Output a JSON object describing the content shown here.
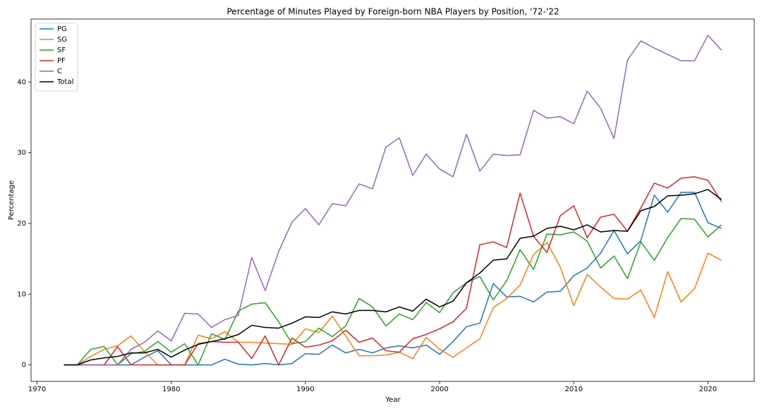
{
  "chart_data": {
    "type": "line",
    "title": "Percentage of Minutes Played by Foreign-born NBA Players by Position, '72-'22",
    "x_label": "Year",
    "y_label": "Percentage",
    "x": [
      1972,
      1973,
      1974,
      1975,
      1976,
      1977,
      1978,
      1979,
      1980,
      1981,
      1982,
      1983,
      1984,
      1985,
      1986,
      1987,
      1988,
      1989,
      1990,
      1991,
      1992,
      1993,
      1994,
      1995,
      1996,
      1997,
      1998,
      1999,
      2000,
      2001,
      2002,
      2003,
      2004,
      2005,
      2006,
      2007,
      2008,
      2009,
      2010,
      2011,
      2012,
      2013,
      2014,
      2015,
      2016,
      2017,
      2018,
      2019,
      2020,
      2021
    ],
    "series": [
      {
        "name": "PG",
        "color": "#1f77b4",
        "values": [
          0,
          0,
          0,
          0,
          0,
          0,
          1.1,
          2.0,
          0,
          0,
          0,
          0,
          0.8,
          0.1,
          0,
          0.2,
          0,
          0.2,
          1.6,
          1.5,
          2.8,
          1.7,
          2.2,
          1.7,
          2.4,
          2.7,
          2.4,
          2.8,
          1.5,
          3.3,
          5.4,
          5.9,
          11.5,
          9.6,
          9.7,
          8.9,
          10.3,
          10.4,
          12.6,
          13.7,
          15.8,
          19.0,
          15.7,
          17.6,
          24.0,
          21.6,
          24.4,
          24.4,
          20.1,
          19.3
        ]
      },
      {
        "name": "SG",
        "color": "#ff7f0e",
        "values": [
          0,
          0,
          1.2,
          2.2,
          2.7,
          4.1,
          1.9,
          0,
          0,
          0,
          4.2,
          3.7,
          4.7,
          3.2,
          3.2,
          3.1,
          3.0,
          2.9,
          5.1,
          4.6,
          6.9,
          4.1,
          1.3,
          1.3,
          1.4,
          1.8,
          0.9,
          3.9,
          2.2,
          1.1,
          2.4,
          3.7,
          8.1,
          9.4,
          11.3,
          15.6,
          17.3,
          13.8,
          8.4,
          12.8,
          11.0,
          9.4,
          9.3,
          10.6,
          6.7,
          13.2,
          8.9,
          10.8,
          15.8,
          14.8
        ]
      },
      {
        "name": "SF",
        "color": "#2ca02c",
        "values": [
          0,
          0,
          2.2,
          2.6,
          0,
          1.6,
          1.9,
          3.3,
          1.8,
          3.0,
          0,
          4.4,
          3.6,
          7.6,
          8.6,
          8.8,
          6.1,
          3.0,
          3.3,
          5.2,
          4.0,
          5.5,
          9.4,
          8.2,
          5.5,
          7.2,
          6.4,
          8.8,
          7.4,
          10.2,
          11.6,
          12.5,
          9.2,
          11.9,
          16.3,
          13.5,
          18.5,
          18.4,
          18.8,
          17.5,
          13.7,
          15.4,
          12.2,
          17.4,
          14.8,
          18.0,
          20.7,
          20.6,
          18.1,
          19.8
        ]
      },
      {
        "name": "PF",
        "color": "#d62728",
        "values": [
          0,
          0,
          0,
          0,
          2.6,
          0,
          0,
          0,
          0,
          0,
          3.0,
          3.3,
          3.2,
          3.2,
          0.9,
          4.1,
          0,
          3.8,
          2.5,
          2.8,
          3.4,
          4.9,
          3.2,
          3.8,
          2.0,
          1.8,
          3.7,
          4.3,
          5.1,
          6.1,
          8.0,
          17.0,
          17.4,
          16.6,
          24.3,
          18.2,
          15.9,
          21.1,
          22.5,
          18.0,
          20.9,
          21.3,
          18.9,
          22.2,
          25.7,
          25.0,
          26.4,
          26.6,
          26.1,
          23.1
        ]
      },
      {
        "name": "C",
        "color": "#9467bd",
        "values": [
          0,
          0,
          0,
          0,
          0,
          2.2,
          3.2,
          4.8,
          3.4,
          7.3,
          7.2,
          5.3,
          6.4,
          7.0,
          15.2,
          10.5,
          16.0,
          20.2,
          22.1,
          19.8,
          22.8,
          22.5,
          25.6,
          24.9,
          30.8,
          32.1,
          26.8,
          29.8,
          27.7,
          26.6,
          32.6,
          27.4,
          29.8,
          29.6,
          29.7,
          36.0,
          34.9,
          35.1,
          34.1,
          38.7,
          36.3,
          32.0,
          43.1,
          45.8,
          44.8,
          43.9,
          43.0,
          43.0,
          46.6,
          44.5
        ]
      },
      {
        "name": "Total",
        "color": "#000000",
        "values": [
          0,
          0,
          0.7,
          1.0,
          1.2,
          1.7,
          1.7,
          2.2,
          1.1,
          2.1,
          2.9,
          3.3,
          3.7,
          4.3,
          5.6,
          5.3,
          5.2,
          5.9,
          6.8,
          6.7,
          7.5,
          7.2,
          7.7,
          7.7,
          7.5,
          8.2,
          7.6,
          9.3,
          8.2,
          9.0,
          11.6,
          13.0,
          14.8,
          15.0,
          17.9,
          18.2,
          19.3,
          19.6,
          19.1,
          19.8,
          18.8,
          19.0,
          18.9,
          21.8,
          22.4,
          23.9,
          24.0,
          24.2,
          24.8,
          23.4
        ]
      }
    ],
    "xlim": [
      1969.55,
      2023.45
    ],
    "ylim": [
      -2.33,
      48.9
    ],
    "xticks": [
      1970,
      1980,
      1990,
      2000,
      2010,
      2020
    ],
    "yticks": [
      0,
      10,
      20,
      30,
      40
    ],
    "legend": "upper left"
  }
}
